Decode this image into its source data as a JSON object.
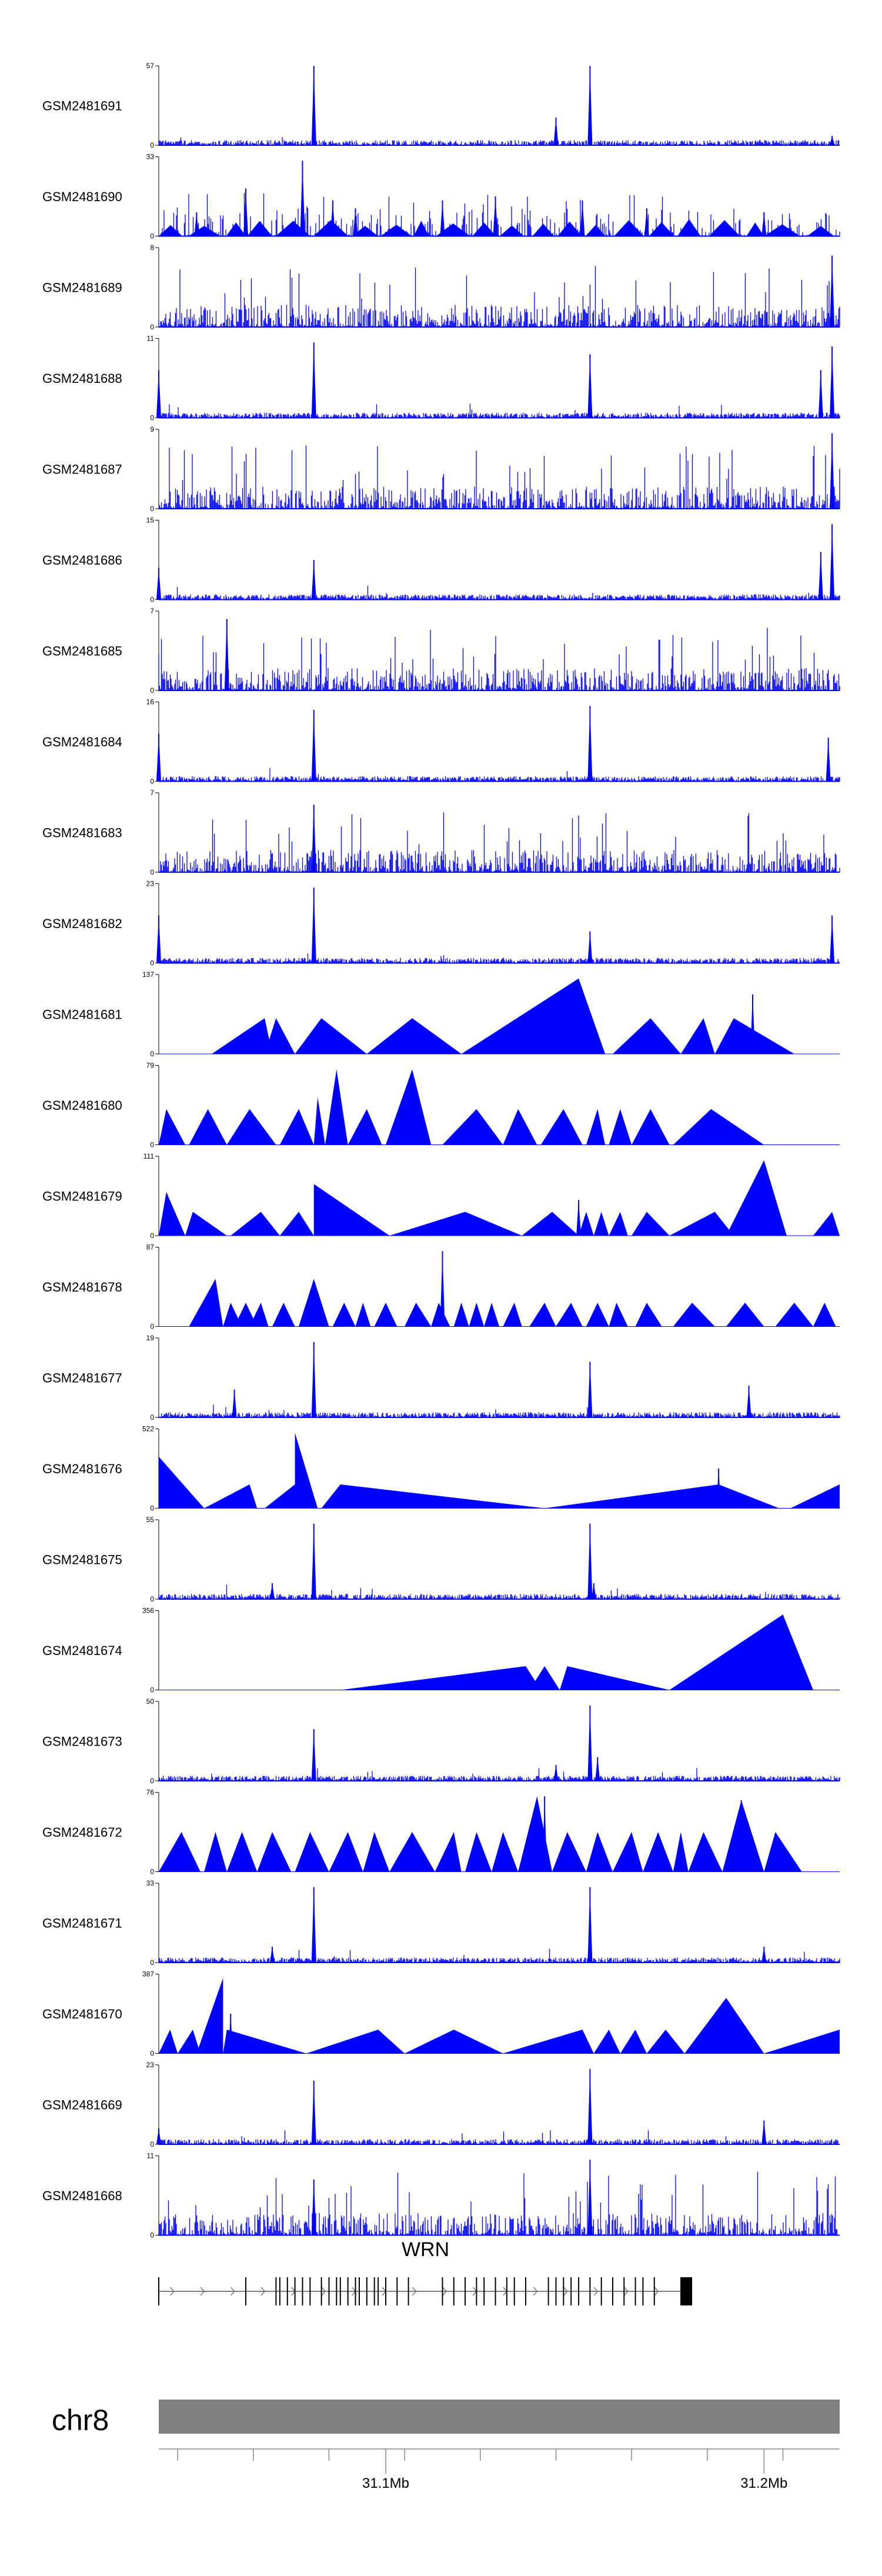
{
  "chart_data": {
    "type": "area",
    "title": "",
    "xlabel": "",
    "ylabel": "",
    "colors": {
      "signal": "#0000ff",
      "axis": "#000000",
      "ideogram": "#7f7f7f"
    },
    "x_range_mb": [
      31.04,
      31.22
    ],
    "tracks": [
      {
        "name": "GSM2481691",
        "ymax": 57,
        "style": "sparse",
        "peaks": [
          [
            31.081,
            1.0
          ],
          [
            31.154,
            1.0
          ],
          [
            31.145,
            0.35
          ],
          [
            31.218,
            0.12
          ]
        ]
      },
      {
        "name": "GSM2481690",
        "ymax": 33,
        "style": "wide",
        "peaks": [
          [
            31.063,
            0.6
          ],
          [
            31.078,
            0.95
          ],
          [
            31.05,
            0.3
          ],
          [
            31.086,
            0.45
          ],
          [
            31.092,
            0.35
          ],
          [
            31.115,
            0.45
          ],
          [
            31.129,
            0.5
          ],
          [
            31.152,
            0.45
          ],
          [
            31.169,
            0.35
          ],
          [
            31.2,
            0.3
          ]
        ]
      },
      {
        "name": "GSM2481689",
        "ymax": 8,
        "style": "dense",
        "peaks": [
          [
            31.218,
            0.9
          ]
        ]
      },
      {
        "name": "GSM2481688",
        "ymax": 11,
        "style": "sparse",
        "peaks": [
          [
            31.081,
            0.95
          ],
          [
            31.154,
            0.8
          ],
          [
            31.215,
            0.6
          ],
          [
            31.218,
            0.9
          ],
          [
            31.04,
            0.6
          ]
        ]
      },
      {
        "name": "GSM2481687",
        "ymax": 9,
        "style": "dense",
        "peaks": [
          [
            31.218,
            0.95
          ]
        ]
      },
      {
        "name": "GSM2481686",
        "ymax": 15,
        "style": "sparse",
        "peaks": [
          [
            31.081,
            0.5
          ],
          [
            31.215,
            0.6
          ],
          [
            31.218,
            0.95
          ],
          [
            31.04,
            0.4
          ]
        ]
      },
      {
        "name": "GSM2481685",
        "ymax": 7,
        "style": "dense",
        "peaks": [
          [
            31.058,
            0.9
          ]
        ]
      },
      {
        "name": "GSM2481684",
        "ymax": 16,
        "style": "sparse",
        "peaks": [
          [
            31.081,
            0.9
          ],
          [
            31.154,
            0.95
          ],
          [
            31.217,
            0.55
          ],
          [
            31.04,
            0.6
          ]
        ]
      },
      {
        "name": "GSM2481683",
        "ymax": 7,
        "style": "dense",
        "peaks": [
          [
            31.081,
            0.85
          ]
        ]
      },
      {
        "name": "GSM2481682",
        "ymax": 23,
        "style": "sparse",
        "peaks": [
          [
            31.081,
            0.95
          ],
          [
            31.154,
            0.4
          ],
          [
            31.04,
            0.6
          ],
          [
            31.218,
            0.6
          ]
        ]
      },
      {
        "name": "GSM2481681",
        "ymax": 137,
        "style": "tri",
        "tri": [
          [
            31.054,
            31.07,
            31.068,
            0.45
          ],
          [
            31.068,
            31.076,
            31.071,
            0.45
          ],
          [
            31.076,
            31.095,
            31.083,
            0.45
          ],
          [
            31.095,
            31.12,
            31.107,
            0.45
          ],
          [
            31.12,
            31.158,
            31.151,
            0.95
          ],
          [
            31.16,
            31.178,
            31.17,
            0.45
          ],
          [
            31.178,
            31.187,
            31.184,
            0.45
          ],
          [
            31.187,
            31.208,
            31.192,
            0.45
          ]
        ],
        "peaks": [
          [
            31.197,
            0.75
          ]
        ]
      },
      {
        "name": "GSM2481680",
        "ymax": 79,
        "style": "tri",
        "tri": [
          [
            31.04,
            31.047,
            31.042,
            0.45
          ],
          [
            31.048,
            31.058,
            31.053,
            0.45
          ],
          [
            31.058,
            31.071,
            31.064,
            0.45
          ],
          [
            31.072,
            31.081,
            31.077,
            0.45
          ],
          [
            31.081,
            31.084,
            31.082,
            0.6
          ],
          [
            31.084,
            31.09,
            31.087,
            0.95
          ],
          [
            31.09,
            31.099,
            31.095,
            0.45
          ],
          [
            31.1,
            31.112,
            31.107,
            0.95
          ],
          [
            31.115,
            31.131,
            31.124,
            0.45
          ],
          [
            31.131,
            31.14,
            31.135,
            0.45
          ],
          [
            31.141,
            31.152,
            31.147,
            0.45
          ],
          [
            31.153,
            31.158,
            31.156,
            0.45
          ],
          [
            31.159,
            31.165,
            31.162,
            0.45
          ],
          [
            31.165,
            31.175,
            31.17,
            0.45
          ],
          [
            31.176,
            31.2,
            31.186,
            0.45
          ]
        ],
        "peaks": []
      },
      {
        "name": "GSM2481679",
        "ymax": 111,
        "style": "tri",
        "tri": [
          [
            31.04,
            31.047,
            31.042,
            0.55
          ],
          [
            31.047,
            31.058,
            31.049,
            0.3
          ],
          [
            31.059,
            31.072,
            31.067,
            0.3
          ],
          [
            31.072,
            31.081,
            31.077,
            0.3
          ],
          [
            31.081,
            31.101,
            31.081,
            0.65
          ],
          [
            31.101,
            31.136,
            31.121,
            0.3
          ],
          [
            31.136,
            31.151,
            31.144,
            0.3
          ],
          [
            31.151,
            31.155,
            31.153,
            0.3
          ],
          [
            31.155,
            31.159,
            31.157,
            0.3
          ],
          [
            31.159,
            31.164,
            31.162,
            0.3
          ],
          [
            31.165,
            31.175,
            31.169,
            0.3
          ],
          [
            31.175,
            31.192,
            31.187,
            0.3
          ],
          [
            31.19,
            31.206,
            31.2,
            0.95
          ],
          [
            31.213,
            31.22,
            31.218,
            0.3
          ]
        ],
        "peaks": [
          [
            31.151,
            0.45
          ]
        ]
      },
      {
        "name": "GSM2481678",
        "ymax": 87,
        "style": "tri",
        "tri": [
          [
            31.048,
            31.057,
            31.055,
            0.6
          ],
          [
            31.057,
            31.062,
            31.059,
            0.3
          ],
          [
            31.06,
            31.066,
            31.063,
            0.3
          ],
          [
            31.064,
            31.069,
            31.067,
            0.3
          ],
          [
            31.07,
            31.076,
            31.073,
            0.3
          ],
          [
            31.077,
            31.085,
            31.081,
            0.6
          ],
          [
            31.086,
            31.092,
            31.089,
            0.3
          ],
          [
            31.092,
            31.096,
            31.094,
            0.3
          ],
          [
            31.097,
            31.103,
            31.1,
            0.3
          ],
          [
            31.105,
            31.112,
            31.108,
            0.3
          ],
          [
            31.112,
            31.117,
            31.114,
            0.3
          ],
          [
            31.118,
            31.122,
            31.12,
            0.3
          ],
          [
            31.122,
            31.126,
            31.124,
            0.3
          ],
          [
            31.126,
            31.13,
            31.128,
            0.3
          ],
          [
            31.131,
            31.136,
            31.134,
            0.3
          ],
          [
            31.138,
            31.145,
            31.142,
            0.3
          ],
          [
            31.145,
            31.152,
            31.149,
            0.3
          ],
          [
            31.153,
            31.159,
            31.156,
            0.3
          ],
          [
            31.159,
            31.164,
            31.161,
            0.3
          ],
          [
            31.166,
            31.173,
            31.169,
            0.3
          ],
          [
            31.176,
            31.187,
            31.181,
            0.3
          ],
          [
            31.19,
            31.2,
            31.195,
            0.3
          ],
          [
            31.203,
            31.213,
            31.208,
            0.3
          ],
          [
            31.213,
            31.219,
            31.216,
            0.3
          ]
        ],
        "peaks": [
          [
            31.115,
            0.95
          ]
        ]
      },
      {
        "name": "GSM2481677",
        "ymax": 19,
        "style": "sparse",
        "peaks": [
          [
            31.081,
            0.95
          ],
          [
            31.154,
            0.7
          ],
          [
            31.06,
            0.35
          ],
          [
            31.196,
            0.4
          ]
        ]
      },
      {
        "name": "GSM2481676",
        "ymax": 522,
        "style": "tri",
        "tri": [
          [
            31.04,
            31.052,
            31.04,
            0.65
          ],
          [
            31.052,
            31.066,
            31.064,
            0.3
          ],
          [
            31.068,
            31.081,
            31.076,
            0.3
          ],
          [
            31.076,
            31.082,
            31.076,
            0.95
          ],
          [
            31.083,
            31.142,
            31.088,
            0.3
          ],
          [
            31.142,
            31.204,
            31.188,
            0.3
          ],
          [
            31.207,
            31.22,
            31.22,
            0.3
          ]
        ],
        "peaks": [
          [
            31.188,
            0.5
          ]
        ]
      },
      {
        "name": "GSM2481675",
        "ymax": 55,
        "style": "sparse",
        "peaks": [
          [
            31.081,
            0.95
          ],
          [
            31.154,
            0.95
          ],
          [
            31.07,
            0.2
          ],
          [
            31.155,
            0.2
          ]
        ]
      },
      {
        "name": "GSM2481674",
        "ymax": 356,
        "style": "tri",
        "tri": [
          [
            31.088,
            31.141,
            31.137,
            0.3
          ],
          [
            31.138,
            31.146,
            31.142,
            0.3
          ],
          [
            31.146,
            31.175,
            31.148,
            0.3
          ],
          [
            31.175,
            31.213,
            31.205,
            0.95
          ]
        ],
        "peaks": []
      },
      {
        "name": "GSM2481673",
        "ymax": 50,
        "style": "sparse",
        "peaks": [
          [
            31.081,
            0.65
          ],
          [
            31.154,
            0.95
          ],
          [
            31.156,
            0.3
          ],
          [
            31.145,
            0.2
          ]
        ]
      },
      {
        "name": "GSM2481672",
        "ymax": 76,
        "style": "tri",
        "tri": [
          [
            31.04,
            31.051,
            31.046,
            0.5
          ],
          [
            31.052,
            31.058,
            31.055,
            0.5
          ],
          [
            31.058,
            31.066,
            31.062,
            0.5
          ],
          [
            31.066,
            31.075,
            31.07,
            0.5
          ],
          [
            31.076,
            31.085,
            31.08,
            0.5
          ],
          [
            31.085,
            31.094,
            31.09,
            0.5
          ],
          [
            31.094,
            31.101,
            31.097,
            0.5
          ],
          [
            31.101,
            31.113,
            31.107,
            0.5
          ],
          [
            31.113,
            31.12,
            31.118,
            0.5
          ],
          [
            31.121,
            31.128,
            31.124,
            0.5
          ],
          [
            31.128,
            31.135,
            31.131,
            0.5
          ],
          [
            31.135,
            31.144,
            31.14,
            0.95
          ],
          [
            31.144,
            31.153,
            31.148,
            0.5
          ],
          [
            31.153,
            31.16,
            31.156,
            0.5
          ],
          [
            31.16,
            31.168,
            31.165,
            0.5
          ],
          [
            31.168,
            31.176,
            31.172,
            0.5
          ],
          [
            31.176,
            31.18,
            31.178,
            0.5
          ],
          [
            31.18,
            31.189,
            31.184,
            0.5
          ],
          [
            31.189,
            31.2,
            31.194,
            0.9
          ],
          [
            31.2,
            31.21,
            31.203,
            0.5
          ]
        ],
        "peaks": [
          [
            31.142,
            0.95
          ],
          [
            31.194,
            0.9
          ]
        ]
      },
      {
        "name": "GSM2481671",
        "ymax": 33,
        "style": "sparse",
        "peaks": [
          [
            31.081,
            0.95
          ],
          [
            31.154,
            0.95
          ],
          [
            31.07,
            0.2
          ],
          [
            31.2,
            0.2
          ]
        ]
      },
      {
        "name": "GSM2481670",
        "ymax": 387,
        "style": "tri",
        "tri": [
          [
            31.04,
            31.045,
            31.043,
            0.3
          ],
          [
            31.045,
            31.051,
            31.049,
            0.3
          ],
          [
            31.05,
            31.057,
            31.057,
            0.95
          ],
          [
            31.057,
            31.079,
            31.058,
            0.3
          ],
          [
            31.079,
            31.105,
            31.098,
            0.3
          ],
          [
            31.105,
            31.131,
            31.118,
            0.3
          ],
          [
            31.131,
            31.155,
            31.152,
            0.3
          ],
          [
            31.155,
            31.162,
            31.159,
            0.3
          ],
          [
            31.162,
            31.169,
            31.166,
            0.3
          ],
          [
            31.169,
            31.179,
            31.174,
            0.3
          ],
          [
            31.179,
            31.2,
            31.19,
            0.7
          ],
          [
            31.2,
            31.22,
            31.22,
            0.3
          ]
        ],
        "peaks": [
          [
            31.059,
            0.5
          ]
        ]
      },
      {
        "name": "GSM2481669",
        "ymax": 23,
        "style": "sparse",
        "peaks": [
          [
            31.081,
            0.8
          ],
          [
            31.154,
            0.95
          ],
          [
            31.2,
            0.3
          ],
          [
            31.04,
            0.2
          ]
        ]
      },
      {
        "name": "GSM2481668",
        "ymax": 11,
        "style": "dense",
        "peaks": [
          [
            31.154,
            0.95
          ],
          [
            31.081,
            0.7
          ]
        ]
      }
    ],
    "gene": {
      "name": "WRN",
      "start_mb": 31.04,
      "end_mb": 31.181,
      "strand": "+",
      "exons_mb": [
        31.04,
        31.063,
        31.071,
        31.072,
        31.074,
        31.076,
        31.078,
        31.08,
        31.083,
        31.085,
        31.087,
        31.088,
        31.09,
        31.092,
        31.093,
        31.095,
        31.097,
        31.098,
        31.1,
        31.103,
        31.106,
        31.115,
        31.118,
        31.121,
        31.124,
        31.126,
        31.129,
        31.132,
        31.134,
        31.137,
        31.143,
        31.145,
        31.147,
        31.149,
        31.151,
        31.154,
        31.157,
        31.16,
        31.163,
        31.166,
        31.168,
        31.171
      ]
    },
    "ideogram": {
      "chrom": "chr8",
      "ticks_mb": [
        31.045,
        31.065,
        31.085,
        31.105,
        31.125,
        31.145,
        31.165,
        31.185,
        31.205
      ],
      "labeled_ticks": [
        {
          "mb": 31.1,
          "label": "31.1Mb"
        },
        {
          "mb": 31.2,
          "label": "31.2Mb"
        }
      ]
    }
  }
}
